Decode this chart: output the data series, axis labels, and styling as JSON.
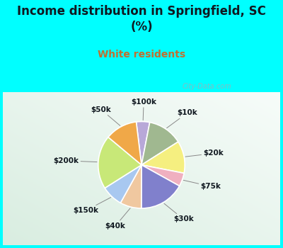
{
  "labels": [
    "$100k",
    "$10k",
    "$20k",
    "$75k",
    "$30k",
    "$40k",
    "$150k",
    "$200k",
    "$50k"
  ],
  "sizes": [
    5,
    13,
    12,
    5,
    17,
    8,
    8,
    20,
    12
  ],
  "colors": [
    "#b8a8d8",
    "#a0b890",
    "#f5ef80",
    "#f0b0c0",
    "#8080cc",
    "#f0c8a0",
    "#a8c8f0",
    "#c8e878",
    "#f0a848"
  ],
  "title": "Income distribution in Springfield, SC\n(%)",
  "subtitle": "White residents",
  "title_color": "#101820",
  "subtitle_color": "#c07030",
  "bg_color": "#00ffff",
  "chart_bg": "#e0f0e8",
  "label_color": "#101820",
  "startangle": 97,
  "watermark": "City-Data.com"
}
